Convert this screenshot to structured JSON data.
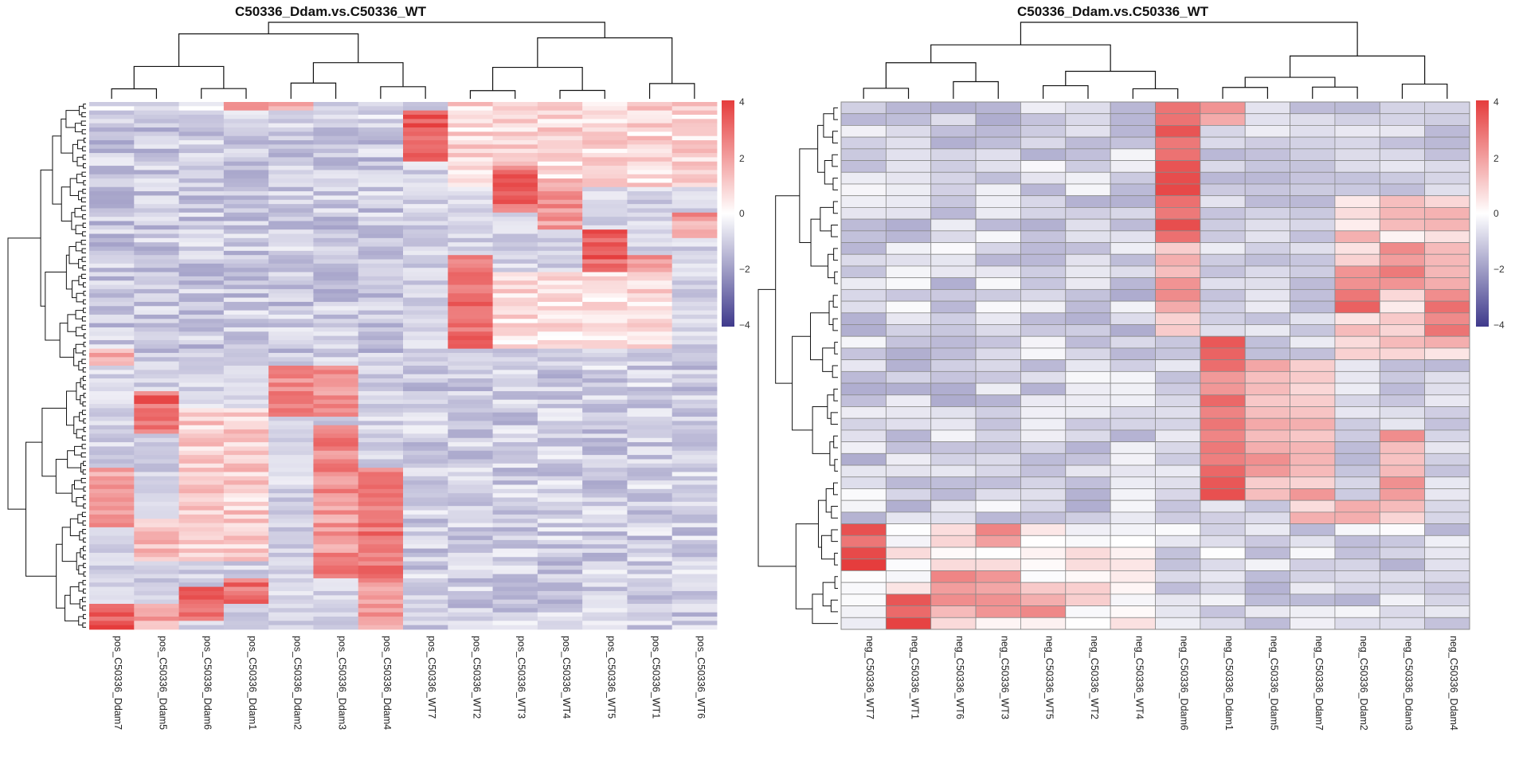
{
  "chart_data": [
    {
      "type": "heatmap",
      "title": "C50336_Ddam.vs.C50336_WT",
      "row_count": 124,
      "cell_borders": false,
      "color_scale": {
        "min": -4,
        "max": 4,
        "low": "#3f3a8c",
        "mid": "#ffffff",
        "high": "#e53c3c"
      },
      "legend_ticks": [
        "4",
        "2",
        "0",
        "−2",
        "−4"
      ],
      "columns": [
        "pos_C50336_Ddam7",
        "pos_C50336_Ddam5",
        "pos_C50336_Ddam6",
        "pos_C50336_Ddam1",
        "pos_C50336_Ddam2",
        "pos_C50336_Ddam3",
        "pos_C50336_Ddam4",
        "pos_C50336_WT7",
        "pos_C50336_WT2",
        "pos_C50336_WT3",
        "pos_C50336_WT4",
        "pos_C50336_WT5",
        "pos_C50336_WT1",
        "pos_C50336_WT6"
      ],
      "blocks": [
        {
          "rows": [
            0,
            4
          ],
          "cols": [
            0,
            6
          ],
          "value": -0.8
        },
        {
          "rows": [
            0,
            2
          ],
          "cols": [
            3,
            4
          ],
          "value": 1.6
        },
        {
          "rows": [
            2,
            14
          ],
          "cols": [
            7,
            7
          ],
          "value": 3.4
        },
        {
          "rows": [
            0,
            20
          ],
          "cols": [
            8,
            13
          ],
          "value": 0.8
        },
        {
          "rows": [
            15,
            26
          ],
          "cols": [
            9,
            9
          ],
          "value": 3.0
        },
        {
          "rows": [
            18,
            30
          ],
          "cols": [
            10,
            10
          ],
          "value": 2.2
        },
        {
          "rows": [
            30,
            40
          ],
          "cols": [
            11,
            11
          ],
          "value": 3.2
        },
        {
          "rows": [
            36,
            46
          ],
          "cols": [
            12,
            12
          ],
          "value": 2.2
        },
        {
          "rows": [
            26,
            32
          ],
          "cols": [
            13,
            13
          ],
          "value": 2.0
        },
        {
          "rows": [
            36,
            58
          ],
          "cols": [
            8,
            8
          ],
          "value": 2.8
        },
        {
          "rows": [
            40,
            58
          ],
          "cols": [
            9,
            12
          ],
          "value": 0.7
        },
        {
          "rows": [
            6,
            60
          ],
          "cols": [
            0,
            6
          ],
          "value": -1.1
        },
        {
          "rows": [
            58,
            62
          ],
          "cols": [
            0,
            0
          ],
          "value": 1.8
        },
        {
          "rows": [
            62,
            124
          ],
          "cols": [
            7,
            13
          ],
          "value": -1.0
        },
        {
          "rows": [
            62,
            74
          ],
          "cols": [
            4,
            5
          ],
          "value": 2.4
        },
        {
          "rows": [
            68,
            78
          ],
          "cols": [
            1,
            1
          ],
          "value": 3.0
        },
        {
          "rows": [
            72,
            108
          ],
          "cols": [
            2,
            3
          ],
          "value": 1.0
        },
        {
          "rows": [
            76,
            92
          ],
          "cols": [
            5,
            5
          ],
          "value": 2.4
        },
        {
          "rows": [
            86,
            112
          ],
          "cols": [
            6,
            6
          ],
          "value": 2.8
        },
        {
          "rows": [
            92,
            110
          ],
          "cols": [
            5,
            5
          ],
          "value": 2.0
        },
        {
          "rows": [
            86,
            100
          ],
          "cols": [
            0,
            0
          ],
          "value": 2.0
        },
        {
          "rows": [
            98,
            108
          ],
          "cols": [
            1,
            1
          ],
          "value": 1.4
        },
        {
          "rows": [
            106,
            112
          ],
          "cols": [
            5,
            5
          ],
          "value": 3.2
        },
        {
          "rows": [
            112,
            118
          ],
          "cols": [
            3,
            3
          ],
          "value": 3.0
        },
        {
          "rows": [
            114,
            122
          ],
          "cols": [
            2,
            2
          ],
          "value": 3.2
        },
        {
          "rows": [
            118,
            124
          ],
          "cols": [
            0,
            0
          ],
          "value": 3.4
        },
        {
          "rows": [
            118,
            124
          ],
          "cols": [
            1,
            1
          ],
          "value": 1.8
        },
        {
          "rows": [
            112,
            124
          ],
          "cols": [
            6,
            6
          ],
          "value": 2.0
        }
      ]
    },
    {
      "type": "heatmap",
      "title": "C50336_Ddam.vs.C50336_WT",
      "row_count": 45,
      "cell_borders": true,
      "color_scale": {
        "min": -4,
        "max": 4,
        "low": "#3f3a8c",
        "mid": "#ffffff",
        "high": "#e53c3c"
      },
      "legend_ticks": [
        "4",
        "2",
        "0",
        "−2",
        "−4"
      ],
      "columns": [
        "neg_C50336_WT7",
        "neg_C50336_WT1",
        "neg_C50336_WT6",
        "neg_C50336_WT3",
        "neg_C50336_WT5",
        "neg_C50336_WT2",
        "neg_C50336_WT4",
        "neg_C50336_Ddam6",
        "neg_C50336_Ddam1",
        "neg_C50336_Ddam5",
        "neg_C50336_Ddam7",
        "neg_C50336_Ddam2",
        "neg_C50336_Ddam3",
        "neg_C50336_Ddam4"
      ],
      "blocks": [
        {
          "rows": [
            0,
            36
          ],
          "cols": [
            0,
            6
          ],
          "value": -0.9
        },
        {
          "rows": [
            0,
            12
          ],
          "cols": [
            7,
            7
          ],
          "value": 3.4
        },
        {
          "rows": [
            12,
            20
          ],
          "cols": [
            7,
            7
          ],
          "value": 1.6
        },
        {
          "rows": [
            0,
            2
          ],
          "cols": [
            8,
            8
          ],
          "value": 1.8
        },
        {
          "rows": [
            8,
            22
          ],
          "cols": [
            11,
            13
          ],
          "value": 1.0
        },
        {
          "rows": [
            12,
            16
          ],
          "cols": [
            12,
            12
          ],
          "value": 2.2
        },
        {
          "rows": [
            14,
            18
          ],
          "cols": [
            11,
            11
          ],
          "value": 2.6
        },
        {
          "rows": [
            16,
            20
          ],
          "cols": [
            13,
            13
          ],
          "value": 3.0
        },
        {
          "rows": [
            20,
            22
          ],
          "cols": [
            8,
            8
          ],
          "value": 3.8
        },
        {
          "rows": [
            22,
            34
          ],
          "cols": [
            8,
            8
          ],
          "value": 2.8
        },
        {
          "rows": [
            22,
            34
          ],
          "cols": [
            9,
            10
          ],
          "value": 1.6
        },
        {
          "rows": [
            28,
            34
          ],
          "cols": [
            12,
            12
          ],
          "value": 1.6
        },
        {
          "rows": [
            34,
            44
          ],
          "cols": [
            10,
            12
          ],
          "value": 1.4
        },
        {
          "rows": [
            36,
            40
          ],
          "cols": [
            12,
            12
          ],
          "value": 2.8
        },
        {
          "rows": [
            38,
            42
          ],
          "cols": [
            11,
            11
          ],
          "value": 2.8
        },
        {
          "rows": [
            40,
            44
          ],
          "cols": [
            9,
            9
          ],
          "value": 2.6
        },
        {
          "rows": [
            36,
            44
          ],
          "cols": [
            7,
            7
          ],
          "value": -0.7
        },
        {
          "rows": [
            36,
            45
          ],
          "cols": [
            0,
            6
          ],
          "value": 0.4
        },
        {
          "rows": [
            36,
            40
          ],
          "cols": [
            0,
            0
          ],
          "value": 3.4
        },
        {
          "rows": [
            36,
            38
          ],
          "cols": [
            3,
            3
          ],
          "value": 2.0
        },
        {
          "rows": [
            40,
            44
          ],
          "cols": [
            2,
            3
          ],
          "value": 1.8
        },
        {
          "rows": [
            42,
            45
          ],
          "cols": [
            1,
            1
          ],
          "value": 3.4
        },
        {
          "rows": [
            42,
            44
          ],
          "cols": [
            4,
            4
          ],
          "value": 2.2
        },
        {
          "rows": [
            36,
            45
          ],
          "cols": [
            8,
            13
          ],
          "value": -0.8
        }
      ]
    }
  ]
}
